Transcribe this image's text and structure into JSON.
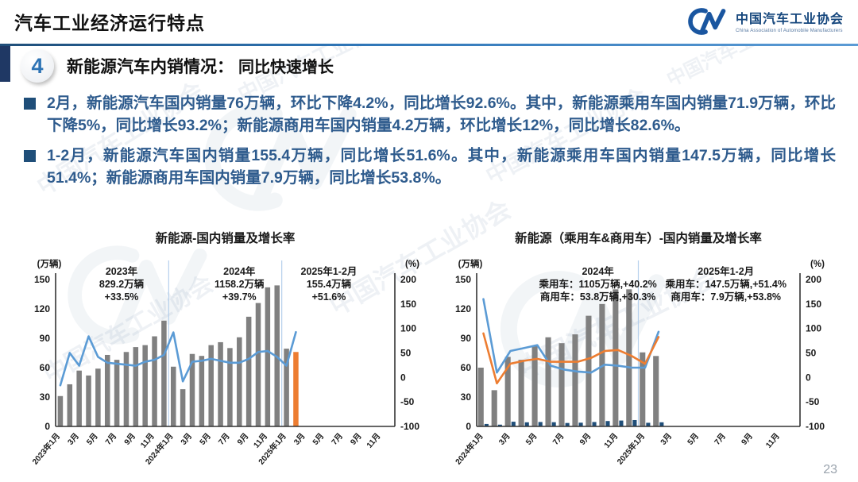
{
  "header": {
    "title": "汽车工业经济运行特点",
    "logo": {
      "mark": "CM-swoosh",
      "name_cn": "中国汽车工业协会",
      "name_en": "China Association of Automobile Manufacturers"
    }
  },
  "section": {
    "number": "4",
    "title": "新能源汽车内销情况：",
    "subtitle": "同比快速增长"
  },
  "bullets": [
    "2月，新能源汽车国内销量76万辆，环比下降4.2%，同比增长92.6%。其中，新能源乘用车国内销量71.9万辆，环比下降5%，同比增长93.2%；新能源商用车国内销量4.2万辆，环比增长12%，同比增长82.6%。",
    "1-2月，新能源汽车国内销量155.4万辆，同比增长51.6%。其中，新能源乘用车国内销量147.5万辆，同比增长51.4%；新能源商用车国内销量7.9万辆，同比增长53.8%。"
  ],
  "watermark": "中国汽车工业协会",
  "page_number": "23",
  "colors": {
    "bar_gray": "#808080",
    "bar_navy": "#1f4e79",
    "line_blue": "#5b9bd5",
    "accent_orange": "#ed7d31",
    "text_blue": "#2e5b8d",
    "brand_blue": "#16477d"
  },
  "chart_data": [
    {
      "type": "bar+line",
      "title": "新能源-国内销量及增长率",
      "left_axis": {
        "unit": "(万辆)",
        "ticks": [
          0,
          30,
          60,
          90,
          120,
          150
        ],
        "range": [
          0,
          150
        ]
      },
      "right_axis": {
        "unit": "(%)",
        "ticks": [
          -100,
          -50,
          0,
          50,
          100,
          150,
          200
        ],
        "range": [
          -100,
          200
        ]
      },
      "months_total": 36,
      "x_tick_labels": [
        "2023年1月",
        "3月",
        "5月",
        "7月",
        "9月",
        "11月",
        "2024年1月",
        "3月",
        "5月",
        "7月",
        "9月",
        "11月",
        "2025年1月",
        "3月",
        "5月",
        "7月",
        "9月",
        "11月"
      ],
      "annotations": [
        {
          "lines": [
            "2023年",
            "829.2万辆",
            "+33.5%"
          ]
        },
        {
          "lines": [
            "2024年",
            "1158.2万辆",
            "+39.7%"
          ]
        },
        {
          "lines": [
            "2025年1-2月",
            "155.4万辆",
            "+51.6%"
          ]
        }
      ],
      "bars": {
        "name": "国内销量(万辆)",
        "color": "#808080",
        "highlight_color": "#ed7d31",
        "highlight_index": 25,
        "values": [
          31,
          43,
          57,
          52,
          59,
          73,
          68,
          76,
          81,
          83,
          92,
          108,
          61,
          38,
          74,
          72,
          83,
          86,
          80,
          91,
          112,
          126,
          142,
          144,
          79.4,
          76
        ]
      },
      "line": {
        "name": "同比增长率(%)",
        "color": "#5b9bd5",
        "axis": "right",
        "values": [
          -16,
          50,
          24,
          84,
          42,
          30,
          28,
          26,
          24,
          32,
          36,
          46,
          92,
          -8,
          32,
          34,
          38,
          34,
          30,
          30,
          38,
          52,
          54,
          42,
          24,
          92.6
        ]
      }
    },
    {
      "type": "bar+line",
      "title": "新能源（乘用车&商用车）-国内销量及增长率",
      "left_axis": {
        "unit": "(万辆)",
        "ticks": [
          0,
          30,
          60,
          90,
          120,
          150
        ],
        "range": [
          0,
          150
        ]
      },
      "right_axis": {
        "unit": "(%)",
        "ticks": [
          -100,
          -50,
          0,
          50,
          100,
          150,
          200
        ],
        "range": [
          -100,
          200
        ]
      },
      "months_total": 24,
      "x_tick_labels": [
        "2024年1月",
        "3月",
        "5月",
        "7月",
        "9月",
        "11月",
        "2025年1月",
        "3月",
        "5月",
        "7月",
        "9月",
        "11月"
      ],
      "annotations": [
        {
          "lines": [
            "2024年",
            "乘用车：1105万辆,+40.2%",
            "商用车：53.8万辆,+30.3%"
          ]
        },
        {
          "lines": [
            "2025年1-2月",
            "乘用车：147.5万辆,+51.4%",
            "商用车：7.9万辆,+53.8%"
          ]
        }
      ],
      "bar_series": [
        {
          "name": "乘用车销量(万辆)",
          "color": "#808080",
          "values": [
            60,
            37,
            71,
            68,
            82,
            91,
            85,
            94,
            113,
            125,
            140,
            140,
            75.6,
            71.9
          ]
        },
        {
          "name": "商用车销量(万辆)",
          "color": "#1f4e79",
          "values": [
            2.5,
            1.8,
            4.8,
            4.2,
            4.5,
            4.3,
            3.5,
            3.8,
            4.5,
            5.5,
            6,
            6.5,
            3.7,
            4.2
          ]
        }
      ],
      "line_series": [
        {
          "name": "乘用车同比增速(%)",
          "color": "#5b9bd5",
          "axis": "right",
          "values": [
            160,
            10,
            54,
            60,
            66,
            24,
            16,
            12,
            10,
            26,
            24,
            20,
            20,
            93.2
          ]
        },
        {
          "name": "商用车同比增速(%)",
          "color": "#ed7d31",
          "axis": "right",
          "values": [
            90,
            -12,
            28,
            34,
            38,
            32,
            32,
            32,
            40,
            54,
            56,
            44,
            28,
            82.6
          ]
        }
      ]
    }
  ]
}
